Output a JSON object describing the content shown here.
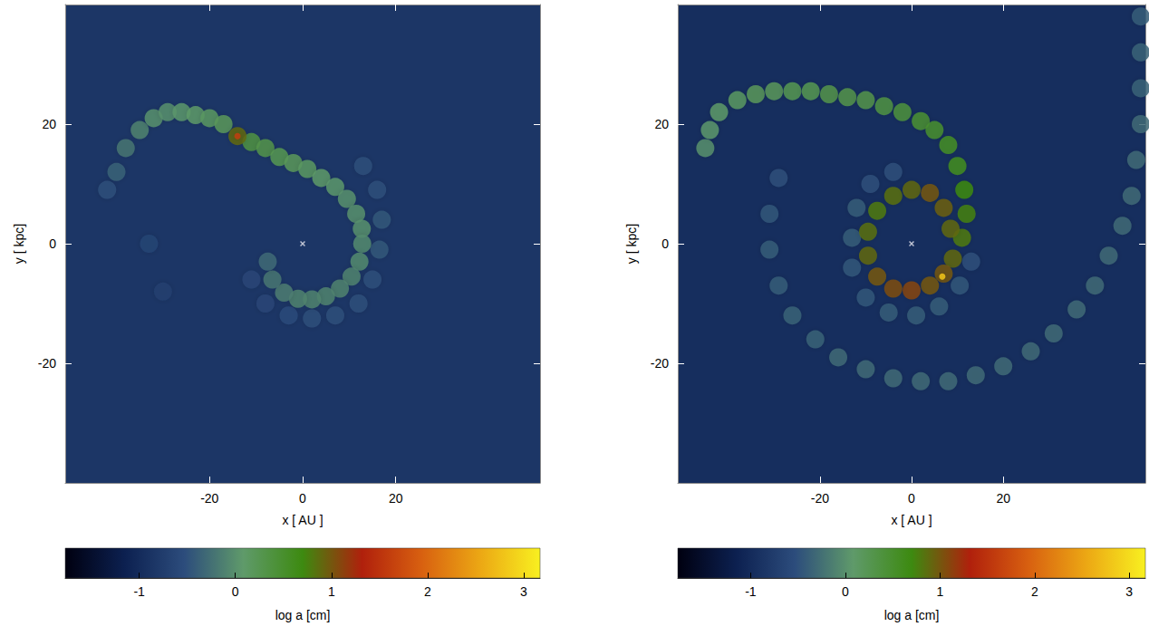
{
  "chart_data": [
    {
      "type": "scatter",
      "x_label": "x [ AU ]",
      "y_label": "y [ kpc]",
      "xlim": [
        -51,
        51
      ],
      "ylim": [
        -40,
        40
      ],
      "xticks": [
        -20,
        0,
        20
      ],
      "yticks": [
        -20,
        0,
        20
      ],
      "background": -0.85,
      "star": [
        0,
        0
      ],
      "points": [
        [
          -42,
          9,
          -0.5
        ],
        [
          -40,
          12,
          -0.35
        ],
        [
          -38,
          16,
          -0.2
        ],
        [
          -35,
          19,
          -0.1
        ],
        [
          -32,
          21,
          0
        ],
        [
          -29,
          22,
          0
        ],
        [
          -26,
          22,
          0.05
        ],
        [
          -23,
          21.5,
          0.1
        ],
        [
          -20,
          21,
          0.15
        ],
        [
          -17,
          20,
          0.2
        ],
        [
          -33,
          0,
          -0.65
        ],
        [
          -30,
          -8,
          -0.7
        ],
        [
          13,
          13,
          -0.5
        ],
        [
          16,
          9,
          -0.5
        ],
        [
          17,
          4,
          -0.45
        ],
        [
          16.5,
          -1,
          -0.45
        ],
        [
          15,
          -6,
          -0.5
        ],
        [
          12,
          -10,
          -0.5
        ],
        [
          7,
          -12,
          -0.5
        ],
        [
          2,
          -12.5,
          -0.5
        ],
        [
          -3,
          -12,
          -0.55
        ],
        [
          -8,
          -10,
          -0.6
        ],
        [
          -11,
          -6,
          -0.6
        ],
        [
          -11,
          17,
          0.35
        ],
        [
          -8,
          16,
          0.3
        ],
        [
          -5,
          14.5,
          0.25
        ],
        [
          -2,
          13.5,
          0.2
        ],
        [
          1,
          12.5,
          0.15
        ],
        [
          4,
          11,
          0.1
        ],
        [
          7,
          9.5,
          0.05
        ],
        [
          9.5,
          7.5,
          0
        ],
        [
          11.5,
          5,
          0
        ],
        [
          12.7,
          2.5,
          0
        ],
        [
          12.8,
          0,
          -0.05
        ],
        [
          12.2,
          -3,
          -0.05
        ],
        [
          10.5,
          -5.5,
          -0.1
        ],
        [
          8,
          -7.5,
          -0.1
        ],
        [
          5,
          -8.8,
          -0.1
        ],
        [
          2,
          -9.3,
          -0.1
        ],
        [
          -1,
          -9.2,
          -0.1
        ],
        [
          -4,
          -8.2,
          -0.15
        ],
        [
          -6.5,
          -6,
          -0.2
        ],
        [
          -7.5,
          -3,
          -0.3
        ],
        [
          -14,
          18,
          0.9
        ],
        [
          -14,
          18,
          1.6
        ]
      ],
      "colorbar": {
        "label": "log a [cm]",
        "range": [
          -1.77,
          3.17
        ],
        "ticks": [
          -1,
          0,
          1,
          2,
          3
        ]
      }
    },
    {
      "type": "scatter",
      "x_label": "x [ AU ]",
      "y_label": "y [ kpc]",
      "xlim": [
        -51,
        51
      ],
      "ylim": [
        -40,
        40
      ],
      "xticks": [
        -20,
        0,
        20
      ],
      "yticks": [
        -20,
        0,
        20
      ],
      "background": -0.95,
      "star": [
        0,
        0
      ],
      "points": [
        [
          -29,
          11,
          -0.5
        ],
        [
          -31,
          5,
          -0.45
        ],
        [
          -31,
          -1,
          -0.4
        ],
        [
          -29,
          -7,
          -0.4
        ],
        [
          -26,
          -12,
          -0.35
        ],
        [
          -21,
          -16,
          -0.35
        ],
        [
          -16,
          -19,
          -0.3
        ],
        [
          -10,
          -21,
          -0.3
        ],
        [
          -4,
          -22.5,
          -0.3
        ],
        [
          2,
          -23,
          -0.3
        ],
        [
          8,
          -23,
          -0.3
        ],
        [
          14,
          -22,
          -0.3
        ],
        [
          20,
          -20.5,
          -0.3
        ],
        [
          26,
          -18,
          -0.3
        ],
        [
          31,
          -15,
          -0.3
        ],
        [
          36,
          -11,
          -0.3
        ],
        [
          40,
          -7,
          -0.3
        ],
        [
          43,
          -2,
          -0.3
        ],
        [
          46,
          3,
          -0.3
        ],
        [
          48,
          8,
          -0.3
        ],
        [
          49,
          14,
          -0.3
        ],
        [
          50,
          20,
          -0.3
        ],
        [
          50,
          26,
          -0.35
        ],
        [
          50,
          32,
          -0.35
        ],
        [
          50,
          38,
          -0.4
        ],
        [
          -12,
          6,
          -0.4
        ],
        [
          -13,
          1,
          -0.4
        ],
        [
          -13,
          -4,
          -0.45
        ],
        [
          -10,
          -9,
          -0.45
        ],
        [
          -5,
          -11.5,
          -0.4
        ],
        [
          1,
          -12,
          -0.4
        ],
        [
          6,
          -10.5,
          -0.4
        ],
        [
          10.5,
          -7,
          -0.45
        ],
        [
          13,
          -3,
          -0.5
        ],
        [
          -9,
          10,
          -0.5
        ],
        [
          -4,
          12,
          -0.5
        ],
        [
          -45,
          16,
          0.0
        ],
        [
          -44,
          19,
          0.05
        ],
        [
          -42,
          22,
          0.1
        ],
        [
          -38,
          24,
          0.15
        ],
        [
          -34,
          25,
          0.2
        ],
        [
          -30,
          25.5,
          0.2
        ],
        [
          -26,
          25.5,
          0.25
        ],
        [
          -22,
          25.5,
          0.25
        ],
        [
          -18,
          25,
          0.3
        ],
        [
          -14,
          24.5,
          0.3
        ],
        [
          -10,
          24,
          0.3
        ],
        [
          -6,
          23,
          0.35
        ],
        [
          -2,
          22,
          0.4
        ],
        [
          2,
          20.5,
          0.45
        ],
        [
          5,
          19,
          0.5
        ],
        [
          8,
          16.5,
          0.55
        ],
        [
          10,
          13,
          0.6
        ],
        [
          11.5,
          9,
          0.7
        ],
        [
          12,
          5,
          0.75
        ],
        [
          11,
          1,
          0.8
        ],
        [
          9,
          -2.5,
          0.9
        ],
        [
          7,
          -5,
          1.0
        ],
        [
          4,
          -7,
          1.0
        ],
        [
          0,
          -7.8,
          1.1
        ],
        [
          -4,
          -7.5,
          1.05
        ],
        [
          -7.5,
          -5.5,
          1.0
        ],
        [
          -9.5,
          -2,
          0.9
        ],
        [
          -9.5,
          2,
          0.85
        ],
        [
          -7.5,
          5.5,
          0.8
        ],
        [
          -4,
          8,
          0.85
        ],
        [
          0,
          9,
          0.9
        ],
        [
          4,
          8.5,
          1.0
        ],
        [
          7,
          6,
          0.95
        ],
        [
          8.5,
          2.5,
          0.9
        ],
        [
          6.7,
          -5.5,
          2.8
        ]
      ],
      "colorbar": {
        "label": "log a [cm]",
        "range": [
          -1.77,
          3.17
        ],
        "ticks": [
          -1,
          0,
          1,
          2,
          3
        ]
      }
    }
  ]
}
